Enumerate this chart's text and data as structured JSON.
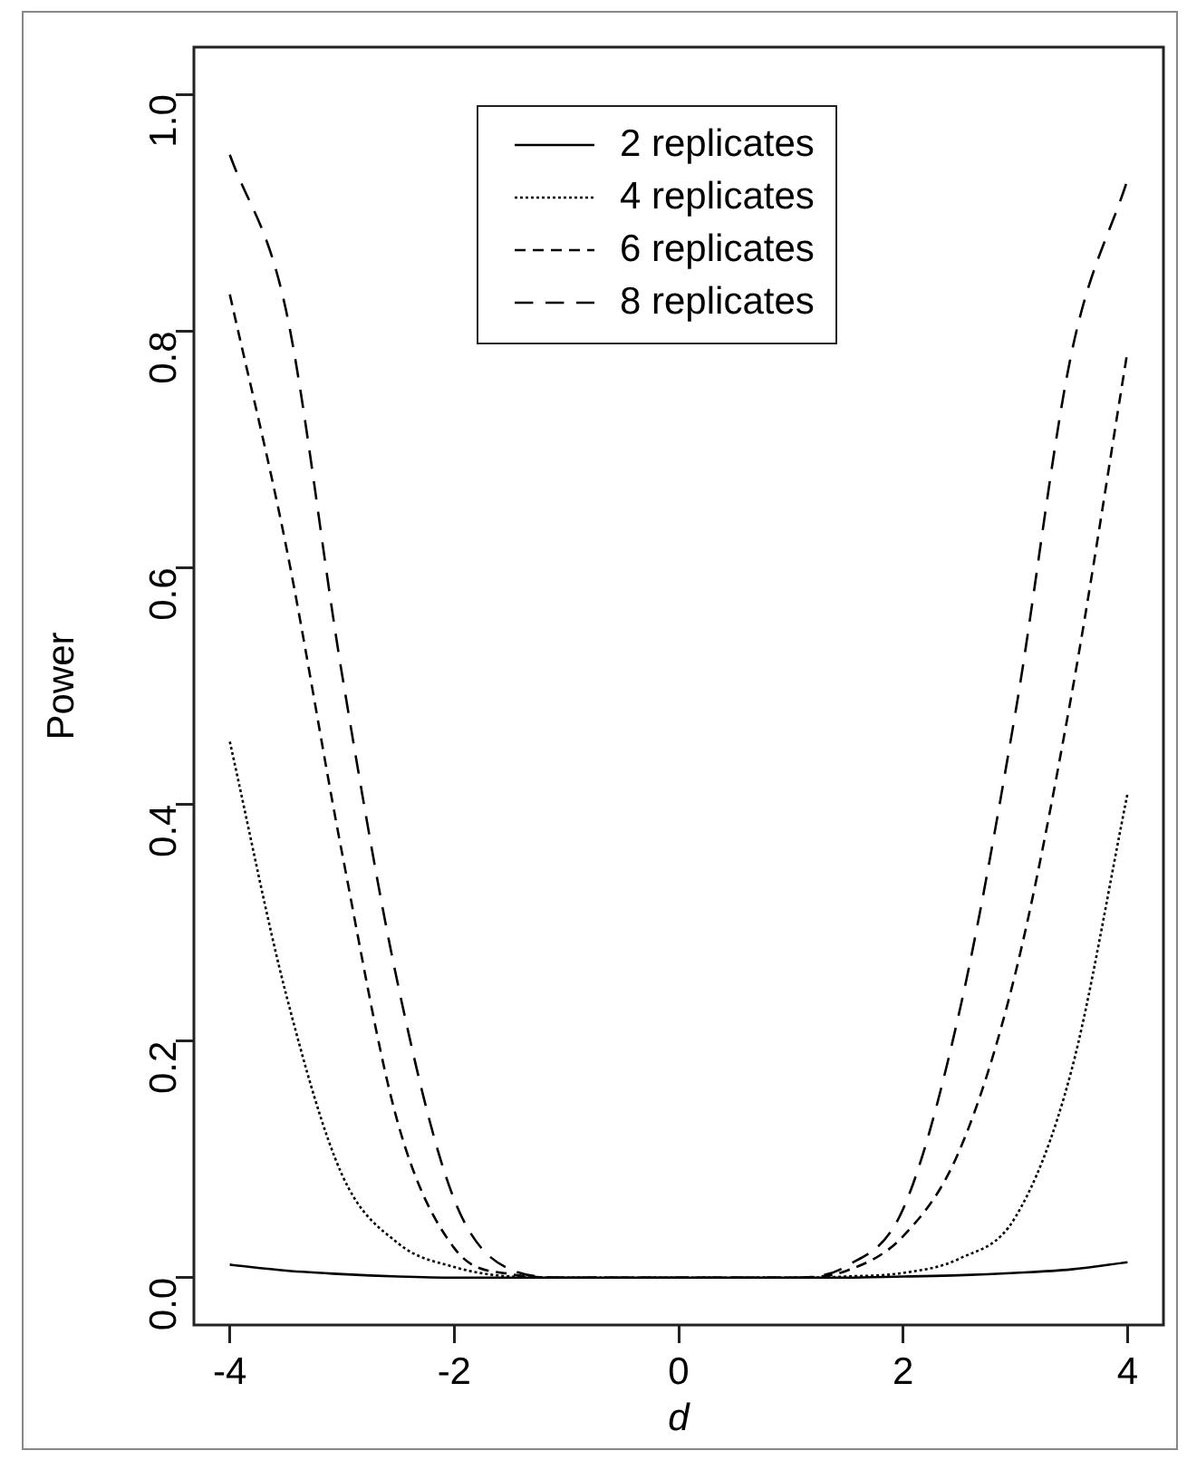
{
  "chart_data": {
    "type": "line",
    "xlabel": "d",
    "ylabel": "Power",
    "x": [
      -4,
      -3.5,
      -3,
      -2.5,
      -2,
      -1.5,
      -1,
      -0.5,
      0,
      0.5,
      1,
      1.5,
      2,
      2.5,
      3,
      3.5,
      4
    ],
    "series": [
      {
        "name": "2 replicates",
        "color": "#000000",
        "line_style": "solid",
        "values": [
          0.011,
          0.006,
          0.003,
          0.001,
          0,
          0,
          0,
          0,
          0,
          0,
          0,
          0,
          0.001,
          0.002,
          0.004,
          0.007,
          0.013
        ]
      },
      {
        "name": "4 replicates",
        "color": "#000000",
        "line_style": "dotted",
        "values": [
          0.453,
          0.24,
          0.087,
          0.029,
          0.009,
          0.001,
          0,
          0,
          0,
          0,
          0,
          0.001,
          0.004,
          0.016,
          0.051,
          0.175,
          0.409
        ]
      },
      {
        "name": "6 replicates",
        "color": "#000000",
        "line_style": "dashed",
        "values": [
          0.831,
          0.619,
          0.359,
          0.13,
          0.025,
          0.003,
          0,
          0,
          0,
          0,
          0,
          0.006,
          0.035,
          0.107,
          0.257,
          0.492,
          0.783
        ]
      },
      {
        "name": "8 replicates",
        "color": "#000000",
        "line_style": "dashed",
        "values": [
          0.949,
          0.818,
          0.51,
          0.247,
          0.066,
          0.007,
          0,
          0,
          0,
          0,
          0,
          0.01,
          0.058,
          0.224,
          0.477,
          0.781,
          0.928
        ]
      }
    ],
    "xlim": [
      -4.32,
      4.32
    ],
    "xticks": [
      -4,
      -2,
      0,
      2,
      4
    ],
    "ylim": [
      -0.04,
      1.04
    ],
    "yticks": [
      {
        "value": 0,
        "label": "0.0"
      },
      0.2,
      0.4,
      0.6,
      0.8,
      {
        "value": 1,
        "label": "1.0"
      }
    ],
    "grid": false,
    "legend": "top",
    "marker": "none"
  }
}
